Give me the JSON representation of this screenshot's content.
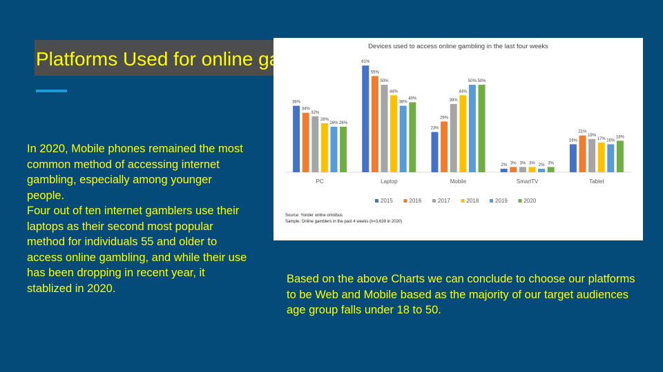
{
  "slide": {
    "title": "Platforms Used  for online gambling",
    "paragraphs": [
      "In 2020, Mobile phones remained the most common method of accessing internet gambling, especially among younger people.",
      "Four out of ten internet gamblers use their laptops as their second most popular method  for individuals 55 and older to access online gambling, and while their use has been dropping in recent year, it stablized in 2020."
    ],
    "conclusion": "Based on the above Charts we can conclude  to choose our platforms to be Web and Mobile  based as  the majority of our target audiences age group falls under 18 to 50."
  },
  "colors": {
    "background": "#054b7a",
    "text": "#ffff00",
    "title_box": "#4d4d4d",
    "accent": "#1e9ad6"
  },
  "chart_data": {
    "type": "bar",
    "title": "Devices used to access online gambling in the last four weeks",
    "categories": [
      "PC",
      "Laptop",
      "Mobile",
      "SmartTV",
      "Tablet"
    ],
    "series": [
      {
        "name": "2015",
        "color": "#4472c4",
        "values": [
          38,
          61,
          23,
          2,
          16
        ]
      },
      {
        "name": "2016",
        "color": "#ed7d31",
        "values": [
          34,
          55,
          29,
          3,
          21
        ]
      },
      {
        "name": "2017",
        "color": "#a5a5a5",
        "values": [
          32,
          50,
          39,
          3,
          19
        ]
      },
      {
        "name": "2018",
        "color": "#ffc000",
        "values": [
          28,
          44,
          44,
          3,
          17
        ]
      },
      {
        "name": "2019",
        "color": "#5b9bd5",
        "values": [
          26,
          38,
          50,
          2,
          16
        ]
      },
      {
        "name": "2020",
        "color": "#70ad47",
        "values": [
          26,
          40,
          50,
          3,
          18
        ]
      }
    ],
    "value_suffix": "%",
    "ylim": [
      0,
      65
    ],
    "grid": false,
    "legend": "bottom",
    "source_lines": [
      "Source: Yonder online omnibus",
      "Sample: Online gamblers in the past 4 weeks (n=3,639 in 2020)"
    ]
  }
}
